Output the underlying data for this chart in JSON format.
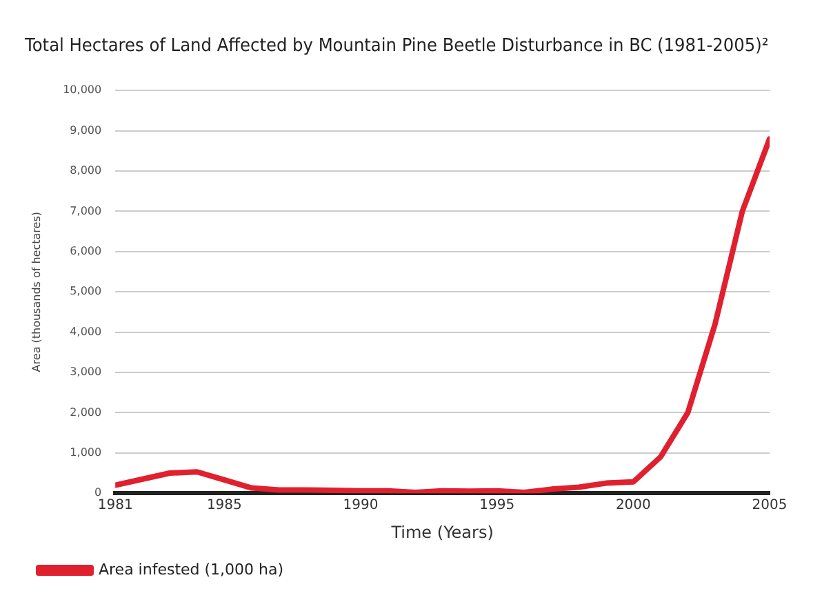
{
  "chart_data": {
    "type": "line",
    "title": "Total Hectares of Land Affected by Mountain Pine Beetle Disturbance in BC (1981-2005)²",
    "xlabel": "Time (Years)",
    "ylabel": "Area (thousands of hectares)",
    "x": [
      1981,
      1982,
      1983,
      1984,
      1985,
      1986,
      1987,
      1988,
      1989,
      1990,
      1991,
      1992,
      1993,
      1994,
      1995,
      1996,
      1997,
      1998,
      1999,
      2000,
      2001,
      2002,
      2003,
      2004,
      2005
    ],
    "series": [
      {
        "name": "Area infested (1,000 ha)",
        "color": "#e0202e",
        "values": [
          200,
          350,
          500,
          530,
          330,
          130,
          80,
          80,
          70,
          60,
          60,
          20,
          60,
          50,
          60,
          20,
          100,
          150,
          250,
          280,
          900,
          2000,
          4200,
          7000,
          8800
        ]
      }
    ],
    "xlim": [
      1981,
      2005
    ],
    "xticks": [
      1981,
      1985,
      1990,
      1995,
      2000,
      2005
    ],
    "ylim": [
      0,
      10000
    ],
    "yticks": [
      {
        "value": 0,
        "label": "0"
      },
      {
        "value": 1000,
        "label": "1,000"
      },
      {
        "value": 2000,
        "label": "2,000"
      },
      {
        "value": 3000,
        "label": "3,000"
      },
      {
        "value": 4000,
        "label": "4,000"
      },
      {
        "value": 5000,
        "label": "5,000"
      },
      {
        "value": 6000,
        "label": "6,000"
      },
      {
        "value": 7000,
        "label": "7,000"
      },
      {
        "value": 8000,
        "label": "8,000"
      },
      {
        "value": 9000,
        "label": "9,000"
      },
      {
        "value": 10000,
        "label": "10,000"
      }
    ],
    "grid": "y",
    "legend": "bottom left",
    "marker": "none",
    "line_style": "solid"
  }
}
